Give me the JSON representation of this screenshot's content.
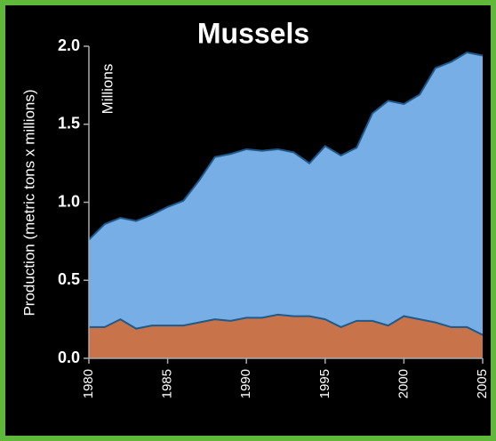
{
  "chart_data": {
    "type": "stacked_area",
    "title": "Mussels",
    "y_label": "Production (metric tons x millions)",
    "annotation": "Millions",
    "x": [
      1980,
      1981,
      1982,
      1983,
      1984,
      1985,
      1986,
      1987,
      1988,
      1989,
      1990,
      1991,
      1992,
      1993,
      1994,
      1995,
      1996,
      1997,
      1998,
      1999,
      2000,
      2001,
      2002,
      2003,
      2004,
      2005
    ],
    "series": [
      {
        "color": "#c8734a",
        "values": [
          0.2,
          0.2,
          0.25,
          0.19,
          0.21,
          0.21,
          0.21,
          0.23,
          0.25,
          0.24,
          0.26,
          0.26,
          0.28,
          0.27,
          0.27,
          0.25,
          0.2,
          0.24,
          0.24,
          0.21,
          0.27,
          0.25,
          0.23,
          0.2,
          0.2,
          0.15
        ]
      },
      {
        "color": "#77aee6",
        "values": [
          0.56,
          0.66,
          0.65,
          0.69,
          0.71,
          0.76,
          0.8,
          0.91,
          1.04,
          1.07,
          1.08,
          1.07,
          1.06,
          1.05,
          0.98,
          1.11,
          1.1,
          1.11,
          1.33,
          1.44,
          1.36,
          1.44,
          1.63,
          1.7,
          1.76,
          1.79
        ]
      }
    ],
    "line_color": "#1f5a8a",
    "xlim": [
      1980,
      2005
    ],
    "xticks": [
      1980,
      1985,
      1990,
      1995,
      2000,
      2005
    ],
    "ylim": [
      0,
      2
    ],
    "yticks": [
      {
        "value": 0,
        "label": "0.0"
      },
      0.5,
      {
        "value": 1,
        "label": "1.0"
      },
      1.5,
      {
        "value": 2,
        "label": "2.0"
      }
    ]
  }
}
